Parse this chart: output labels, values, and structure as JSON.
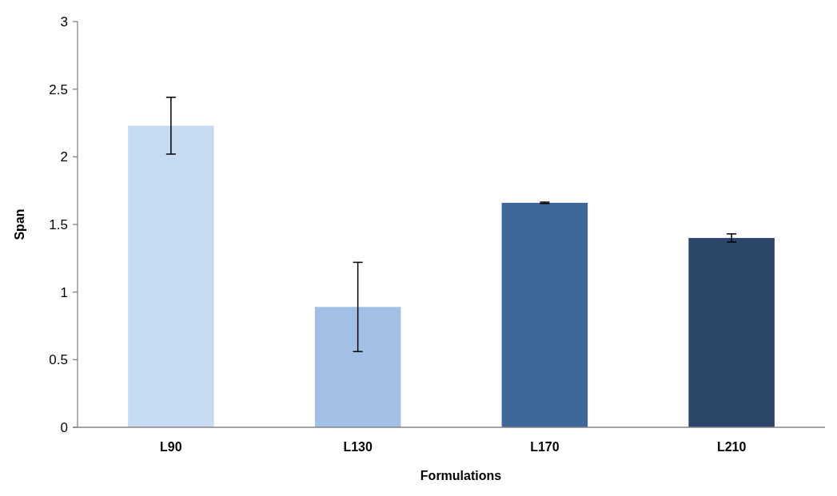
{
  "chart_data": {
    "type": "bar",
    "xlabel": "Formulations",
    "ylabel": "Span",
    "categories": [
      "L90",
      "L130",
      "L170",
      "L210"
    ],
    "values": [
      2.23,
      0.89,
      1.66,
      1.4
    ],
    "errors": [
      0.21,
      0.33,
      0.005,
      0.03
    ],
    "colors": [
      "#c6daf2",
      "#a2bfe5",
      "#3d6899",
      "#2b4669"
    ],
    "ylim": [
      0,
      3
    ],
    "yticks": [
      0,
      0.5,
      1,
      1.5,
      2,
      2.5,
      3
    ],
    "grid": false
  }
}
